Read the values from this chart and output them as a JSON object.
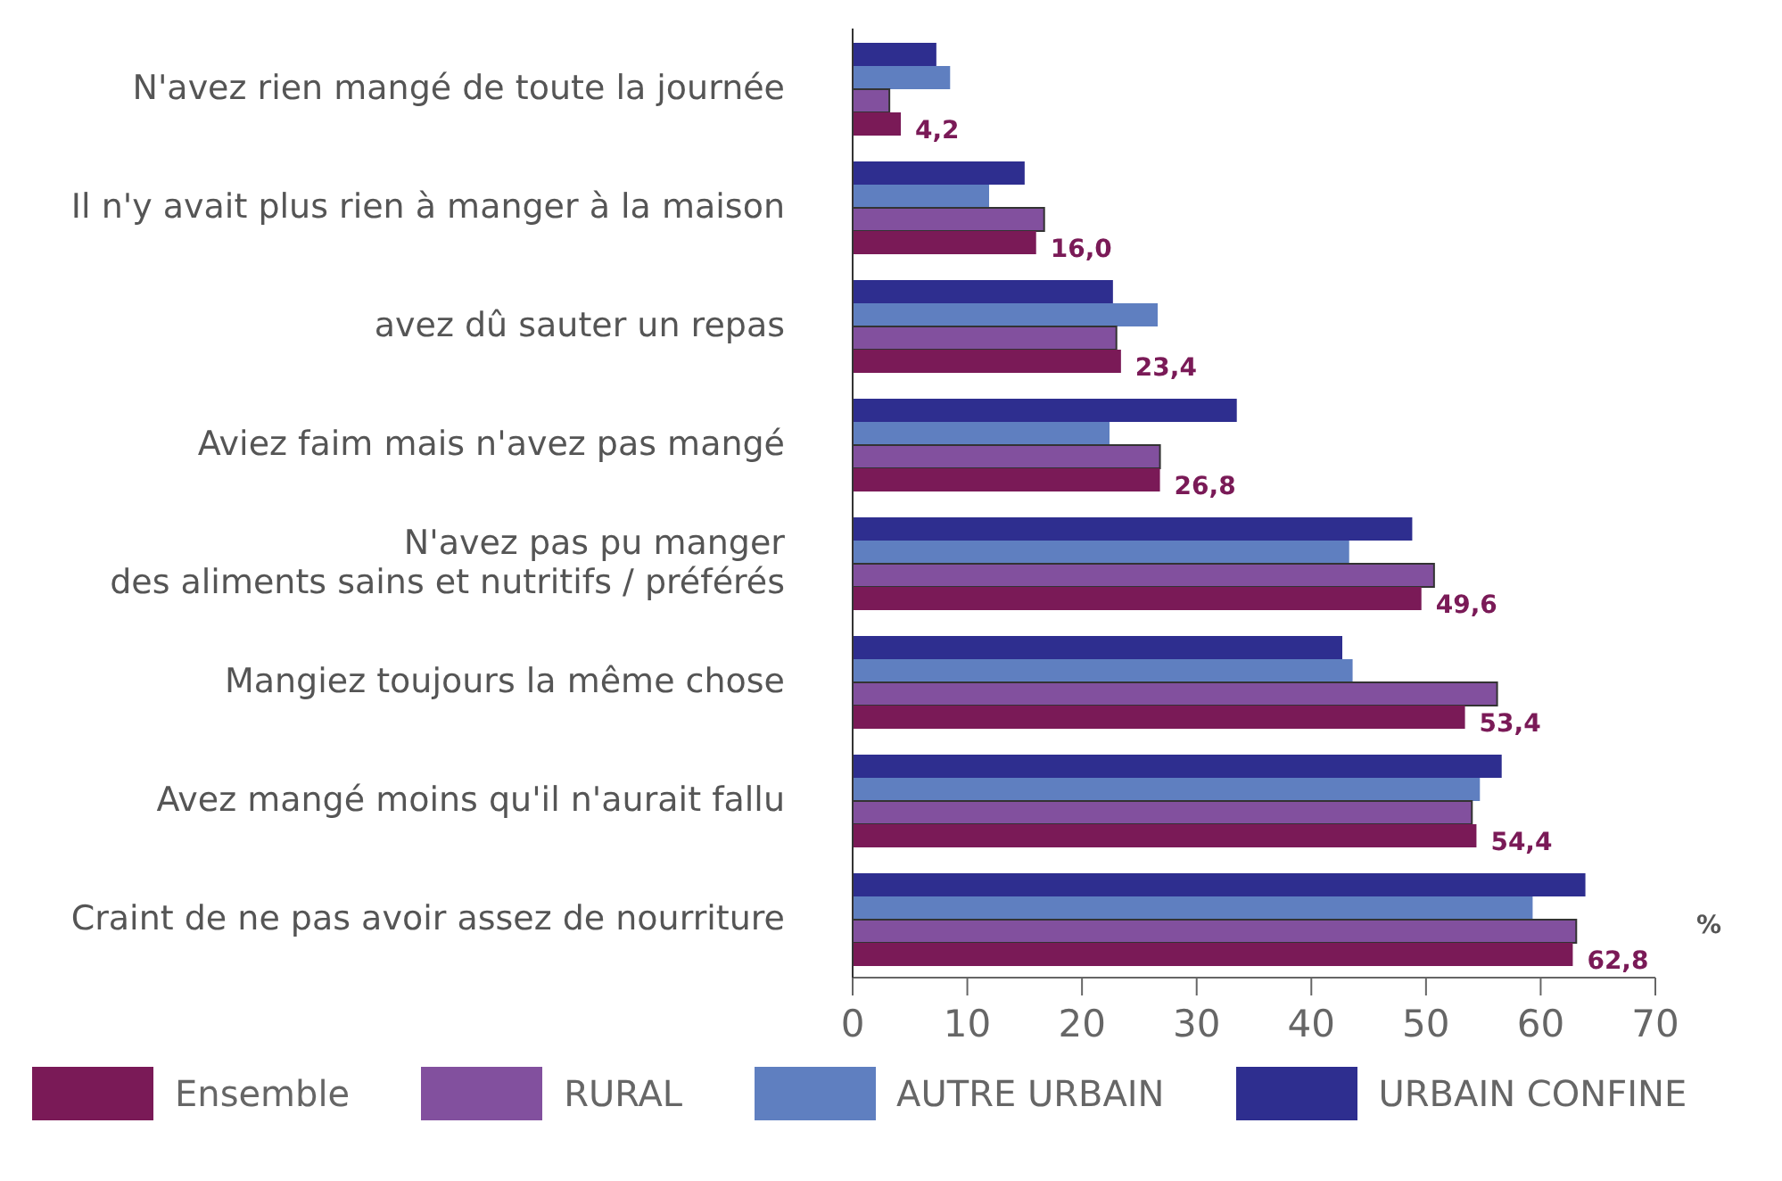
{
  "chart_data": {
    "type": "bar",
    "orientation": "horizontal",
    "xlabel": "%",
    "categories": [
      "N'avez rien mangé de toute la journée",
      "Il n'y avait plus rien à manger à la maison",
      "avez dû sauter un repas",
      "Aviez faim mais n'avez pas mangé",
      "N'avez pas pu manger\ndes aliments sains et nutritifs / préférés",
      "Mangiez toujours la même chose",
      "Avez mangé moins qu'il n'aurait fallu",
      "Craint de ne pas avoir assez de nourriture"
    ],
    "series": [
      {
        "name": "Ensemble",
        "color": "#7a1a57",
        "values": [
          4.2,
          16.0,
          23.4,
          26.8,
          49.6,
          53.4,
          54.4,
          62.8
        ],
        "value_labels": [
          "4,2",
          "16,0",
          "23,4",
          "26,8",
          "49,6",
          "53,4",
          "54,4",
          "62,8"
        ]
      },
      {
        "name": "RURAL",
        "color": "#82509e",
        "values": [
          3.2,
          16.7,
          23.0,
          26.8,
          50.7,
          56.2,
          54.0,
          63.1
        ]
      },
      {
        "name": "AUTRE URBAIN",
        "color": "#5f7fc0",
        "values": [
          8.5,
          11.9,
          26.6,
          22.4,
          43.3,
          43.6,
          54.7,
          59.3
        ]
      },
      {
        "name": "URBAIN CONFINE",
        "color": "#2e2e8f",
        "values": [
          7.3,
          15.0,
          22.7,
          33.5,
          48.8,
          42.7,
          56.6,
          63.9
        ]
      }
    ],
    "xlim": [
      0,
      70
    ],
    "xticks": [
      0,
      10,
      20,
      30,
      40,
      50,
      60,
      70
    ],
    "grid": false,
    "legend": "bottom"
  }
}
